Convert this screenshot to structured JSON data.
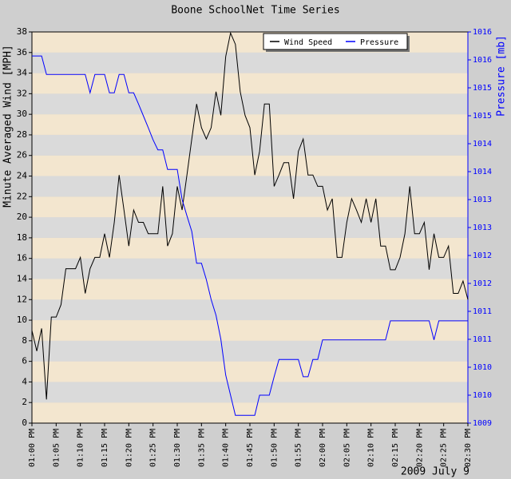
{
  "chart_data": {
    "type": "line",
    "title": "Boone SchoolNet Time Series",
    "ylabel": "Minute Averaged Wind [MPH]",
    "y2label": "Pressure [mb]",
    "date_label": "2009 July 9",
    "legend": "upper right",
    "band_colors": [
      "#f3e6cf",
      "#dadada"
    ],
    "x": [
      "01:00 PM",
      "01:01 PM",
      "01:02 PM",
      "01:03 PM",
      "01:04 PM",
      "01:05 PM",
      "01:06 PM",
      "01:07 PM",
      "01:08 PM",
      "01:09 PM",
      "01:10 PM",
      "01:11 PM",
      "01:12 PM",
      "01:13 PM",
      "01:14 PM",
      "01:15 PM",
      "01:16 PM",
      "01:17 PM",
      "01:18 PM",
      "01:19 PM",
      "01:20 PM",
      "01:21 PM",
      "01:22 PM",
      "01:23 PM",
      "01:24 PM",
      "01:25 PM",
      "01:26 PM",
      "01:27 PM",
      "01:28 PM",
      "01:29 PM",
      "01:30 PM",
      "01:31 PM",
      "01:32 PM",
      "01:33 PM",
      "01:34 PM",
      "01:35 PM",
      "01:36 PM",
      "01:37 PM",
      "01:38 PM",
      "01:39 PM",
      "01:40 PM",
      "01:41 PM",
      "01:42 PM",
      "01:43 PM",
      "01:44 PM",
      "01:45 PM",
      "01:46 PM",
      "01:47 PM",
      "01:48 PM",
      "01:49 PM",
      "01:50 PM",
      "01:51 PM",
      "01:52 PM",
      "01:53 PM",
      "01:54 PM",
      "01:55 PM",
      "01:56 PM",
      "01:57 PM",
      "01:58 PM",
      "01:59 PM",
      "02:00 PM",
      "02:01 PM",
      "02:02 PM",
      "02:03 PM",
      "02:04 PM",
      "02:05 PM",
      "02:06 PM",
      "02:07 PM",
      "02:08 PM",
      "02:09 PM",
      "02:10 PM",
      "02:11 PM",
      "02:12 PM",
      "02:13 PM",
      "02:14 PM",
      "02:15 PM",
      "02:16 PM",
      "02:17 PM",
      "02:18 PM",
      "02:19 PM",
      "02:20 PM",
      "02:21 PM",
      "02:22 PM",
      "02:23 PM",
      "02:24 PM",
      "02:25 PM",
      "02:26 PM",
      "02:27 PM",
      "02:28 PM",
      "02:29 PM",
      "02:30 PM"
    ],
    "xlim": [
      "01:00 PM",
      "02:30 PM"
    ],
    "xticks": [
      "01:00 PM",
      "01:05 PM",
      "01:10 PM",
      "01:15 PM",
      "01:20 PM",
      "01:25 PM",
      "01:30 PM",
      "01:35 PM",
      "01:40 PM",
      "01:45 PM",
      "01:50 PM",
      "01:55 PM",
      "02:00 PM",
      "02:05 PM",
      "02:10 PM",
      "02:15 PM",
      "02:20 PM",
      "02:25 PM",
      "02:30 PM"
    ],
    "ylim": [
      0,
      38
    ],
    "yticks": [
      0,
      2,
      4,
      6,
      8,
      10,
      12,
      14,
      16,
      18,
      20,
      22,
      24,
      26,
      28,
      30,
      32,
      34,
      36,
      38
    ],
    "y2lim": [
      1009.3,
      1016.3
    ],
    "y2ticks": [
      {
        "value": 1009.3,
        "label": "1009"
      },
      {
        "value": 1009.8,
        "label": "1010"
      },
      {
        "value": 1010.3,
        "label": "1010"
      },
      {
        "value": 1010.8,
        "label": "1011"
      },
      {
        "value": 1011.3,
        "label": "1011"
      },
      {
        "value": 1011.8,
        "label": "1012"
      },
      {
        "value": 1012.3,
        "label": "1012"
      },
      {
        "value": 1012.8,
        "label": "1013"
      },
      {
        "value": 1013.3,
        "label": "1013"
      },
      {
        "value": 1013.8,
        "label": "1014"
      },
      {
        "value": 1014.3,
        "label": "1014"
      },
      {
        "value": 1014.8,
        "label": "1015"
      },
      {
        "value": 1015.3,
        "label": "1015"
      },
      {
        "value": 1015.8,
        "label": "1016"
      },
      {
        "value": 1016.3,
        "label": "1016"
      }
    ],
    "series": [
      {
        "name": "Wind Speed",
        "color": "#000000",
        "values": [
          9,
          7,
          9.2,
          2.3,
          10.3,
          10.3,
          11.5,
          15,
          15,
          15,
          16.1,
          12.6,
          15,
          16.1,
          16.1,
          18.4,
          16.1,
          19.5,
          24.1,
          20.7,
          17.2,
          20.7,
          19.5,
          19.5,
          18.4,
          18.4,
          18.4,
          23,
          17.2,
          18.4,
          23,
          20.7,
          24.1,
          27.6,
          31,
          28.7,
          27.6,
          28.7,
          32.2,
          29.9,
          35.6,
          37.9,
          36.8,
          32.2,
          29.9,
          28.7,
          24.1,
          26.4,
          31,
          31,
          23,
          24.1,
          25.3,
          25.3,
          21.8,
          26.4,
          27.6,
          24.1,
          24.1,
          23,
          23,
          20.7,
          21.8,
          16.1,
          16.1,
          19.5,
          21.8,
          20.7,
          19.5,
          21.8,
          19.5,
          21.8,
          17.2,
          17.2,
          14.9,
          14.9,
          16.1,
          18.4,
          23,
          18.4,
          18.4,
          19.5,
          14.9,
          18.4,
          16.1,
          16.1,
          17.2,
          12.6,
          12.6,
          13.8,
          12
        ]
      },
      {
        "name": "Pressure",
        "color": "#0000ff",
        "axis": "y2",
        "values": [
          1015.87,
          1015.87,
          1015.87,
          1015.54,
          1015.54,
          1015.54,
          1015.54,
          1015.54,
          1015.54,
          1015.54,
          1015.54,
          1015.54,
          1015.21,
          1015.54,
          1015.54,
          1015.54,
          1015.21,
          1015.21,
          1015.54,
          1015.54,
          1015.21,
          1015.21,
          1015.01,
          1014.8,
          1014.59,
          1014.37,
          1014.19,
          1014.19,
          1013.84,
          1013.84,
          1013.84,
          1013.3,
          1013.01,
          1012.73,
          1012.16,
          1012.16,
          1011.87,
          1011.51,
          1011.23,
          1010.8,
          1010.16,
          1009.8,
          1009.44,
          1009.44,
          1009.44,
          1009.44,
          1009.44,
          1009.8,
          1009.8,
          1009.8,
          1010.13,
          1010.44,
          1010.44,
          1010.44,
          1010.44,
          1010.44,
          1010.13,
          1010.13,
          1010.44,
          1010.44,
          1010.79,
          1010.79,
          1010.79,
          1010.79,
          1010.79,
          1010.79,
          1010.79,
          1010.79,
          1010.79,
          1010.79,
          1010.79,
          1010.79,
          1010.79,
          1010.79,
          1011.13,
          1011.13,
          1011.13,
          1011.13,
          1011.13,
          1011.13,
          1011.13,
          1011.13,
          1011.13,
          1010.79,
          1011.13,
          1011.13,
          1011.13,
          1011.13,
          1011.13,
          1011.13,
          1011.13
        ]
      }
    ]
  }
}
